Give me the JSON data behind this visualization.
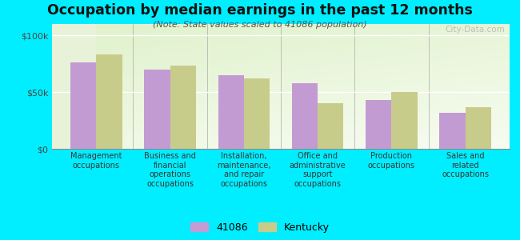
{
  "title": "Occupation by median earnings in the past 12 months",
  "subtitle": "(Note: State values scaled to 41086 population)",
  "background_color": "#00EEFF",
  "bar_color_41086": "#C39BD3",
  "bar_color_kentucky": "#C8CC8A",
  "categories": [
    "Management\noccupations",
    "Business and\nfinancial\noperations\noccupations",
    "Installation,\nmaintenance,\nand repair\noccupations",
    "Office and\nadministrative\nsupport\noccupations",
    "Production\noccupations",
    "Sales and\nrelated\noccupations"
  ],
  "values_41086": [
    76000,
    70000,
    65000,
    58000,
    43000,
    32000
  ],
  "values_kentucky": [
    83000,
    73000,
    62000,
    40000,
    50000,
    37000
  ],
  "ylim": [
    0,
    110000
  ],
  "yticks": [
    0,
    50000,
    100000
  ],
  "yticklabels": [
    "$0",
    "$50k",
    "$100k"
  ],
  "legend_label_41086": "41086",
  "legend_label_kentucky": "Kentucky",
  "watermark": "City-Data.com"
}
